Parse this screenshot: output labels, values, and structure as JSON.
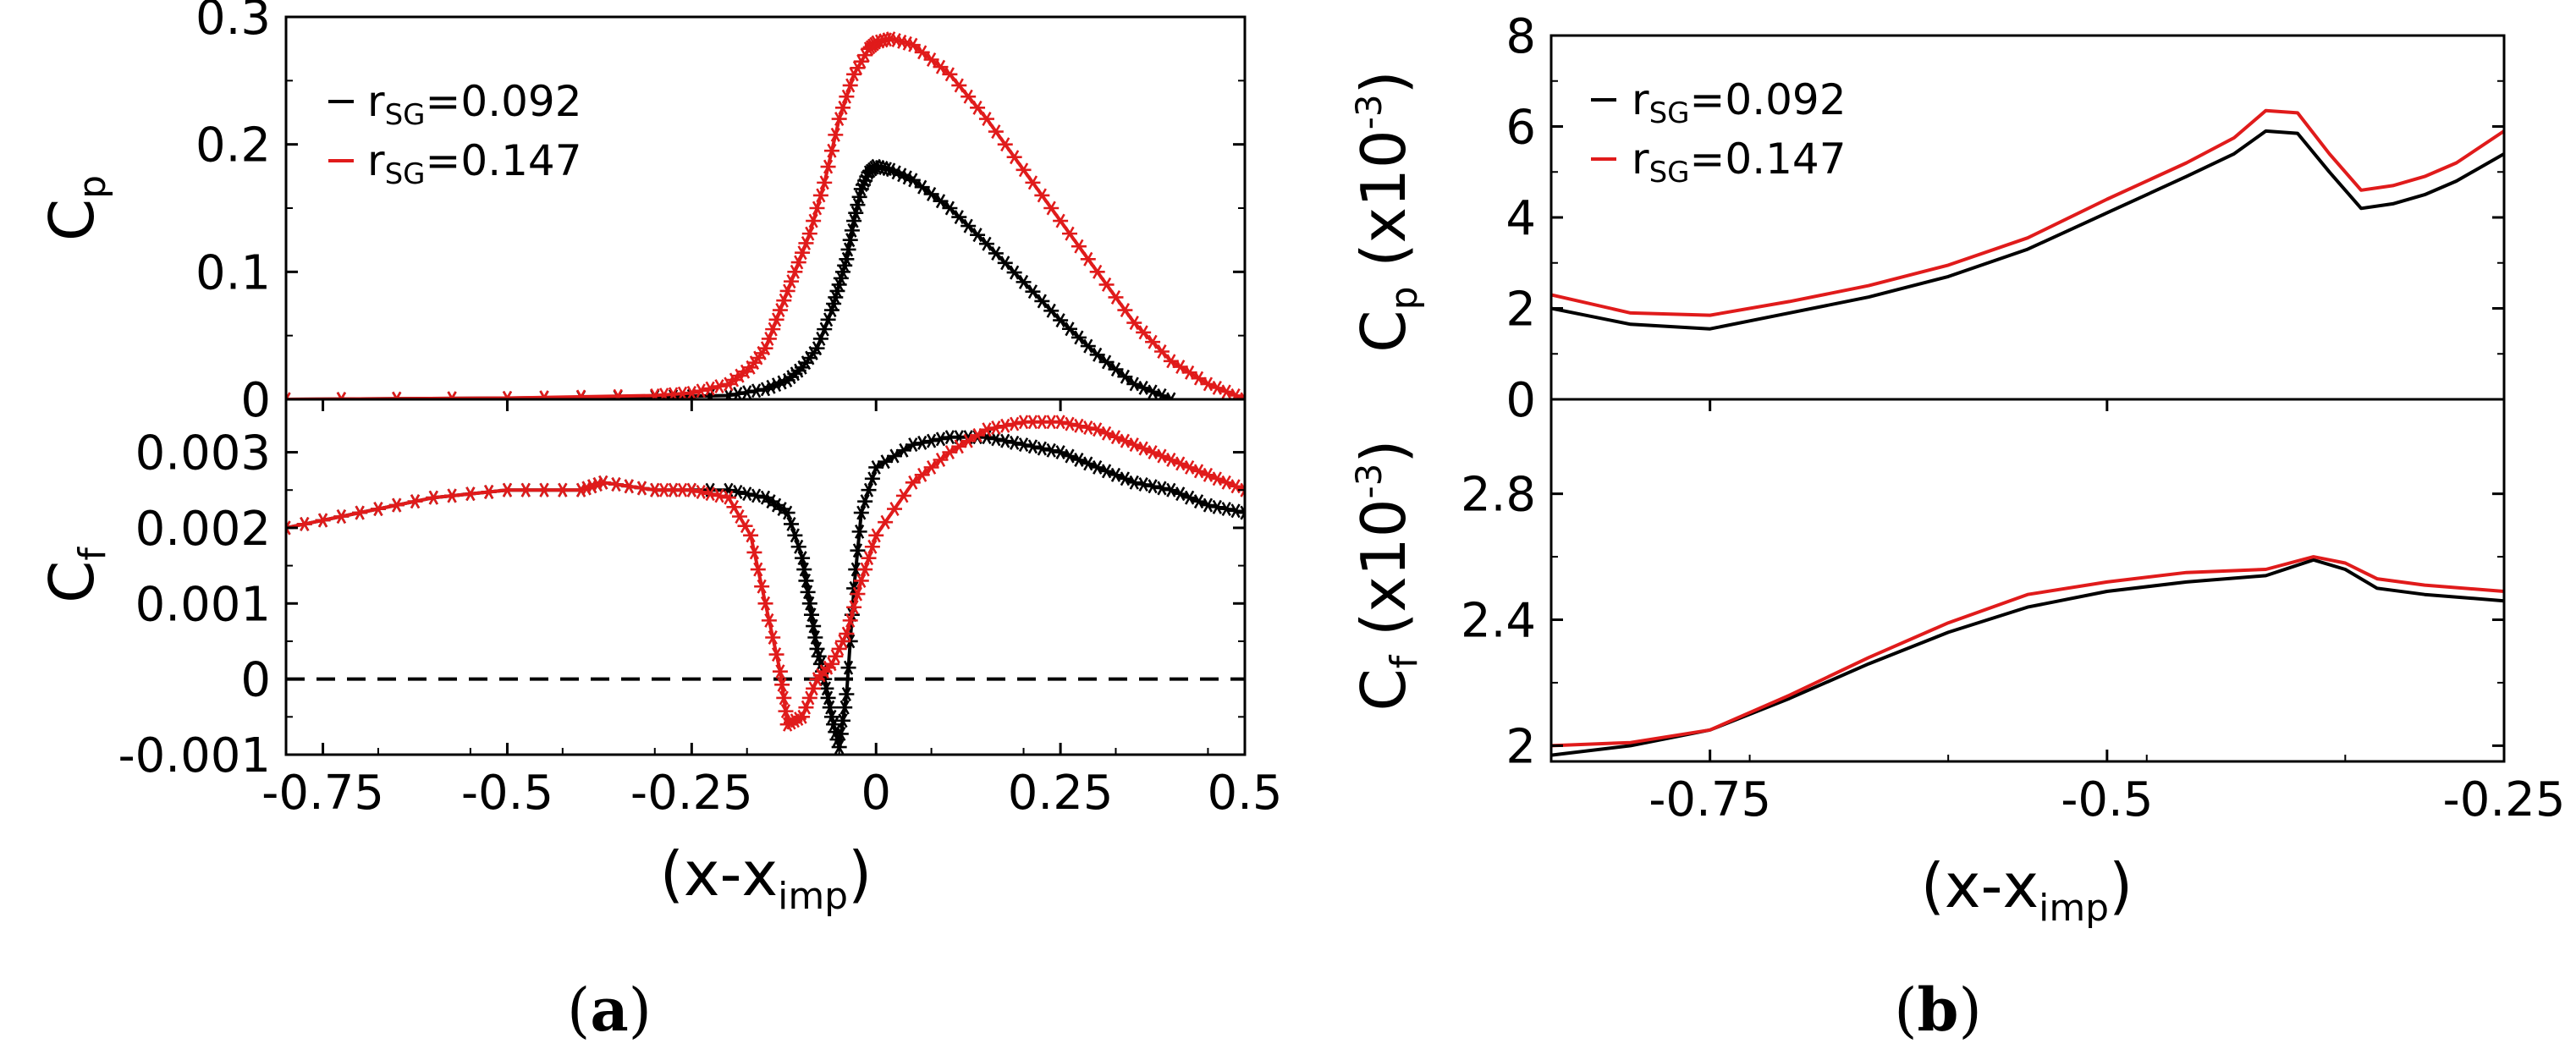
{
  "figure": {
    "label_a": "(a)",
    "label_a_open": "(",
    "label_a_letter": "a",
    "label_a_close": ")",
    "label_b_open": "(",
    "label_b_letter": "b",
    "label_b_close": ")"
  },
  "colors": {
    "black": "#000000",
    "red": "#e01b1b"
  },
  "chart_data": [
    {
      "id": "a_top",
      "type": "line",
      "panel": "a",
      "ylabel": "C",
      "ylabel_sub": "p",
      "xlim": [
        -0.8,
        0.5
      ],
      "ylim": [
        0,
        0.3
      ],
      "yticks": [
        0,
        0.1,
        0.2,
        0.3
      ],
      "ytick_labels": [
        "0",
        "0.1",
        "0.2",
        "0.3"
      ],
      "markers": "asterisk",
      "legend": {
        "placement": "top-left",
        "entries": [
          {
            "prefix": "r",
            "sub": "SG",
            "value": "=0.092",
            "color": "#000000"
          },
          {
            "prefix": "r",
            "sub": "SG",
            "value": "=0.147",
            "color": "#e01b1b"
          }
        ]
      },
      "series": [
        {
          "name": "r_SG=0.092",
          "color": "#000000",
          "x": [
            -0.8,
            -0.5,
            -0.3,
            -0.2,
            -0.15,
            -0.12,
            -0.1,
            -0.08,
            -0.06,
            -0.05,
            -0.04,
            -0.03,
            -0.02,
            -0.01,
            0,
            0.02,
            0.05,
            0.1,
            0.15,
            0.2,
            0.25,
            0.3,
            0.35,
            0.4
          ],
          "y": [
            0,
            0.001,
            0.002,
            0.003,
            0.008,
            0.015,
            0.025,
            0.04,
            0.07,
            0.09,
            0.11,
            0.14,
            0.165,
            0.178,
            0.183,
            0.18,
            0.172,
            0.15,
            0.122,
            0.092,
            0.062,
            0.035,
            0.012,
            0
          ]
        },
        {
          "name": "r_SG=0.147",
          "color": "#e01b1b",
          "x": [
            -0.8,
            -0.5,
            -0.3,
            -0.25,
            -0.2,
            -0.17,
            -0.15,
            -0.13,
            -0.11,
            -0.09,
            -0.07,
            -0.05,
            -0.03,
            -0.01,
            0,
            0.02,
            0.05,
            0.1,
            0.15,
            0.2,
            0.25,
            0.3,
            0.35,
            0.4,
            0.45,
            0.5
          ],
          "y": [
            0,
            0.001,
            0.003,
            0.005,
            0.012,
            0.025,
            0.04,
            0.07,
            0.1,
            0.13,
            0.17,
            0.22,
            0.255,
            0.275,
            0.28,
            0.283,
            0.278,
            0.255,
            0.22,
            0.18,
            0.14,
            0.1,
            0.06,
            0.03,
            0.012,
            0
          ]
        }
      ]
    },
    {
      "id": "a_bottom",
      "type": "line",
      "panel": "a",
      "ylabel": "C",
      "ylabel_sub": "f",
      "xlabel": "(x-x",
      "xlabel_sub": "imp",
      "xlabel_close": ")",
      "xlim": [
        -0.8,
        0.5
      ],
      "ylim": [
        -0.001,
        0.0037
      ],
      "xticks": [
        -0.75,
        -0.5,
        -0.25,
        0,
        0.25,
        0.5
      ],
      "xtick_labels": [
        "-0.75",
        "-0.5",
        "-0.25",
        "0",
        "0.25",
        "0.5"
      ],
      "yticks": [
        -0.001,
        0,
        0.001,
        0.002,
        0.003
      ],
      "ytick_labels": [
        "-0.001",
        "0",
        "0.001",
        "0.002",
        "0.003"
      ],
      "reference_line": {
        "y": 0,
        "style": "dashed"
      },
      "markers": "asterisk",
      "series": [
        {
          "name": "r_SG=0.092",
          "color": "#000000",
          "x": [
            -0.8,
            -0.7,
            -0.6,
            -0.5,
            -0.4,
            -0.37,
            -0.3,
            -0.2,
            -0.15,
            -0.12,
            -0.1,
            -0.09,
            -0.08,
            -0.07,
            -0.06,
            -0.05,
            -0.04,
            -0.03,
            -0.02,
            0,
            0.05,
            0.1,
            0.15,
            0.2,
            0.25,
            0.3,
            0.35,
            0.4,
            0.45,
            0.5
          ],
          "y": [
            0.002,
            0.0022,
            0.0024,
            0.0025,
            0.0025,
            0.0026,
            0.0025,
            0.0025,
            0.0024,
            0.0022,
            0.0016,
            0.001,
            0.0004,
            0.0,
            -0.0005,
            -0.0009,
            -0.0002,
            0.0012,
            0.0022,
            0.0028,
            0.0031,
            0.0032,
            0.0032,
            0.0031,
            0.003,
            0.0028,
            0.0026,
            0.0025,
            0.0023,
            0.0022
          ]
        },
        {
          "name": "r_SG=0.147",
          "color": "#e01b1b",
          "x": [
            -0.8,
            -0.7,
            -0.6,
            -0.5,
            -0.4,
            -0.37,
            -0.3,
            -0.25,
            -0.2,
            -0.17,
            -0.15,
            -0.13,
            -0.12,
            -0.1,
            -0.08,
            -0.06,
            -0.04,
            -0.02,
            0,
            0.05,
            0.1,
            0.15,
            0.2,
            0.25,
            0.3,
            0.35,
            0.4,
            0.45,
            0.5
          ],
          "y": [
            0.002,
            0.0022,
            0.0024,
            0.0025,
            0.0025,
            0.0026,
            0.0025,
            0.0025,
            0.0024,
            0.0019,
            0.001,
            0.0001,
            -0.0006,
            -0.0005,
            0.0,
            0.0002,
            0.0006,
            0.0013,
            0.0019,
            0.0026,
            0.003,
            0.0033,
            0.0034,
            0.0034,
            0.0033,
            0.0031,
            0.0029,
            0.0027,
            0.0025
          ]
        }
      ]
    },
    {
      "id": "b_top",
      "type": "line",
      "panel": "b",
      "ylabel": "C",
      "ylabel_sub": "p",
      "ylabel_units": " (x10",
      "ylabel_exp": "-3",
      "ylabel_close": ")",
      "xlim": [
        -0.85,
        -0.25
      ],
      "ylim": [
        0,
        8
      ],
      "yticks": [
        0,
        2,
        4,
        6,
        8
      ],
      "ytick_labels": [
        "0",
        "2",
        "4",
        "6",
        "8"
      ],
      "legend": {
        "placement": "top-left",
        "entries": [
          {
            "prefix": "r",
            "sub": "SG",
            "value": "=0.092",
            "color": "#000000"
          },
          {
            "prefix": "r",
            "sub": "SG",
            "value": "=0.147",
            "color": "#e01b1b"
          }
        ]
      },
      "series": [
        {
          "name": "r_SG=0.092",
          "color": "#000000",
          "x": [
            -0.85,
            -0.8,
            -0.75,
            -0.7,
            -0.65,
            -0.6,
            -0.55,
            -0.5,
            -0.45,
            -0.42,
            -0.4,
            -0.38,
            -0.36,
            -0.34,
            -0.32,
            -0.3,
            -0.28,
            -0.25
          ],
          "y": [
            2.0,
            1.65,
            1.55,
            1.9,
            2.25,
            2.7,
            3.3,
            4.1,
            4.9,
            5.4,
            5.9,
            5.85,
            5.0,
            4.2,
            4.3,
            4.5,
            4.8,
            5.4
          ]
        },
        {
          "name": "r_SG=0.147",
          "color": "#e01b1b",
          "x": [
            -0.85,
            -0.8,
            -0.75,
            -0.7,
            -0.65,
            -0.6,
            -0.55,
            -0.5,
            -0.45,
            -0.42,
            -0.4,
            -0.38,
            -0.36,
            -0.34,
            -0.32,
            -0.3,
            -0.28,
            -0.25
          ],
          "y": [
            2.3,
            1.9,
            1.85,
            2.15,
            2.5,
            2.95,
            3.55,
            4.4,
            5.2,
            5.75,
            6.35,
            6.3,
            5.4,
            4.6,
            4.7,
            4.9,
            5.2,
            5.9
          ]
        }
      ]
    },
    {
      "id": "b_bottom",
      "type": "line",
      "panel": "b",
      "ylabel": "C",
      "ylabel_sub": "f",
      "ylabel_units": " (x10",
      "ylabel_exp": "-3",
      "ylabel_close": ")",
      "xlabel": "(x-x",
      "xlabel_sub": "imp",
      "xlabel_close": ")",
      "xlim": [
        -0.85,
        -0.25
      ],
      "ylim": [
        1.95,
        3.1
      ],
      "xticks": [
        -0.75,
        -0.5,
        -0.25
      ],
      "xtick_labels": [
        "-0.75",
        "-0.5",
        "-0.25"
      ],
      "yticks": [
        2,
        2.4,
        2.8
      ],
      "ytick_labels": [
        "2",
        "2.4",
        "2.8"
      ],
      "series": [
        {
          "name": "r_SG=0.092",
          "color": "#000000",
          "x": [
            -0.85,
            -0.8,
            -0.75,
            -0.7,
            -0.65,
            -0.6,
            -0.55,
            -0.5,
            -0.45,
            -0.4,
            -0.37,
            -0.35,
            -0.33,
            -0.3,
            -0.25
          ],
          "y": [
            1.97,
            2.0,
            2.05,
            2.15,
            2.26,
            2.36,
            2.44,
            2.49,
            2.52,
            2.54,
            2.59,
            2.56,
            2.5,
            2.48,
            2.46
          ]
        },
        {
          "name": "r_SG=0.147",
          "color": "#e01b1b",
          "x": [
            -0.85,
            -0.8,
            -0.75,
            -0.7,
            -0.65,
            -0.6,
            -0.55,
            -0.5,
            -0.45,
            -0.4,
            -0.37,
            -0.35,
            -0.33,
            -0.3,
            -0.25
          ],
          "y": [
            2.0,
            2.01,
            2.05,
            2.16,
            2.28,
            2.39,
            2.48,
            2.52,
            2.55,
            2.56,
            2.6,
            2.58,
            2.53,
            2.51,
            2.49
          ]
        }
      ]
    }
  ]
}
